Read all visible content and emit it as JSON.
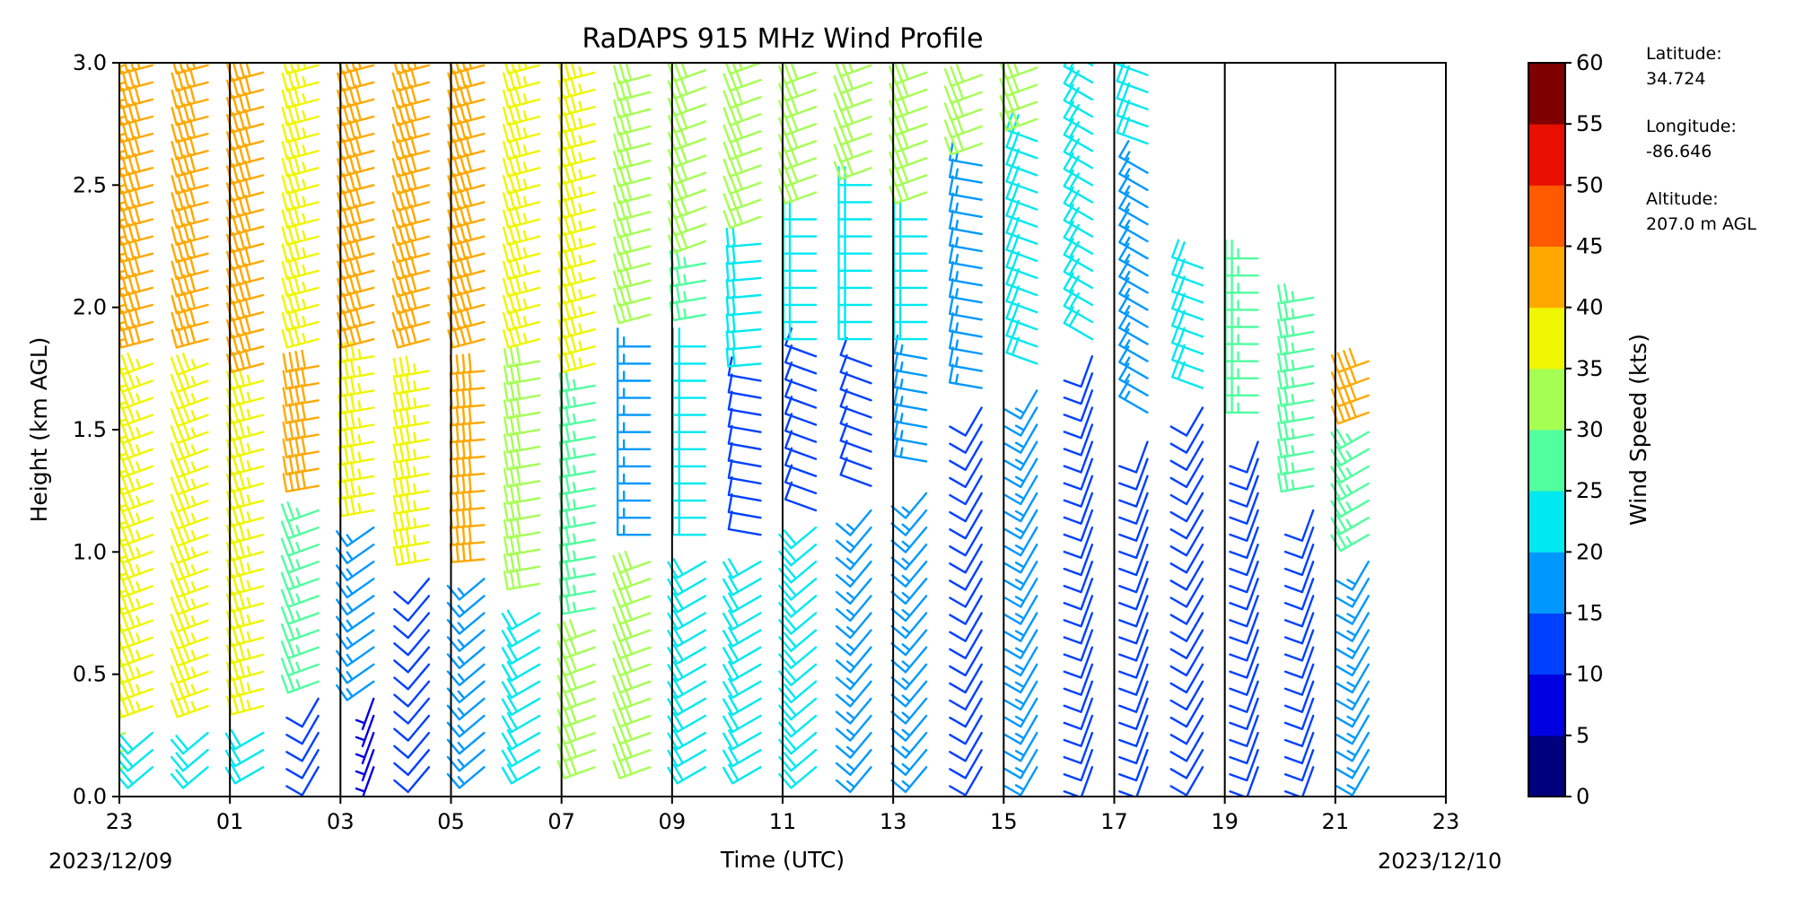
{
  "chart_data": {
    "type": "wind-barb-profile",
    "title": "RaDAPS 915 MHz Wind Profile",
    "xlabel": "Time (UTC)",
    "ylabel": "Height (km AGL)",
    "x_ticks": [
      "23",
      "01",
      "03",
      "05",
      "07",
      "09",
      "11",
      "13",
      "15",
      "17",
      "19",
      "21",
      "23"
    ],
    "x_range_hours": [
      0,
      24
    ],
    "date_start": "2023/12/09",
    "date_end": "2023/12/10",
    "y_ticks": [
      "0.0",
      "0.5",
      "1.0",
      "1.5",
      "2.0",
      "2.5",
      "3.0"
    ],
    "ylim": [
      0,
      3.0
    ],
    "colorbar": {
      "label": "Wind Speed (kts)",
      "ticks": [
        "0",
        "5",
        "10",
        "15",
        "20",
        "25",
        "30",
        "35",
        "40",
        "45",
        "50",
        "55",
        "60"
      ],
      "colors": [
        "#00007f",
        "#0000e0",
        "#0040ff",
        "#0098ff",
        "#00e8f0",
        "#50ff9e",
        "#a4ff52",
        "#f0f500",
        "#ffa800",
        "#ff5a00",
        "#e80f00",
        "#7f0000"
      ]
    },
    "site_info": {
      "latitude_label": "Latitude:",
      "latitude": "34.724",
      "longitude_label": "Longitude:",
      "longitude": "-86.646",
      "altitude_label": "Altitude:",
      "altitude": "207.0 m AGL"
    },
    "profiles": [
      {
        "t": 0.1,
        "layers": [
          {
            "top": 0.7,
            "speed": 32,
            "dir": 250
          },
          {
            "top": 1.8,
            "speed": 36,
            "dir": 250
          },
          {
            "top": 3.0,
            "speed": 44,
            "dir": 255
          }
        ]
      },
      {
        "t": 0.6,
        "layers": [
          {
            "top": 0.3,
            "speed": 22,
            "dir": 230
          },
          {
            "top": 1.8,
            "speed": 37,
            "dir": 250
          },
          {
            "top": 3.0,
            "speed": 44,
            "dir": 255
          }
        ]
      },
      {
        "t": 1.6,
        "layers": [
          {
            "top": 0.3,
            "speed": 20,
            "dir": 230
          },
          {
            "top": 1.8,
            "speed": 38,
            "dir": 250
          },
          {
            "top": 3.0,
            "speed": 44,
            "dir": 255
          }
        ]
      },
      {
        "t": 2.6,
        "layers": [
          {
            "top": 0.3,
            "speed": 24,
            "dir": 240
          },
          {
            "top": 1.7,
            "speed": 38,
            "dir": 255
          },
          {
            "top": 3.0,
            "speed": 42,
            "dir": 255
          }
        ]
      },
      {
        "t": 3.6,
        "layers": [
          {
            "top": 0.4,
            "speed": 10,
            "dir": 210
          },
          {
            "top": 1.2,
            "speed": 28,
            "dir": 250
          },
          {
            "top": 1.8,
            "speed": 40,
            "dir": 260
          },
          {
            "top": 3.0,
            "speed": 38,
            "dir": 255
          }
        ]
      },
      {
        "t": 4.6,
        "layers": [
          {
            "top": 0.4,
            "speed": 8,
            "dir": 200
          },
          {
            "top": 1.1,
            "speed": 18,
            "dir": 235
          },
          {
            "top": 1.8,
            "speed": 38,
            "dir": 260
          },
          {
            "top": 3.0,
            "speed": 40,
            "dir": 255
          }
        ]
      },
      {
        "t": 5.6,
        "layers": [
          {
            "top": 0.9,
            "speed": 12,
            "dir": 220
          },
          {
            "top": 1.8,
            "speed": 38,
            "dir": 260
          },
          {
            "top": 3.0,
            "speed": 40,
            "dir": 255
          }
        ]
      },
      {
        "t": 6.6,
        "layers": [
          {
            "top": 0.9,
            "speed": 18,
            "dir": 230
          },
          {
            "top": 1.8,
            "speed": 40,
            "dir": 265
          },
          {
            "top": 3.0,
            "speed": 40,
            "dir": 255
          }
        ]
      },
      {
        "t": 7.6,
        "layers": [
          {
            "top": 0.8,
            "speed": 22,
            "dir": 240
          },
          {
            "top": 1.8,
            "speed": 32,
            "dir": 260
          },
          {
            "top": 3.0,
            "speed": 38,
            "dir": 255
          }
        ]
      },
      {
        "t": 8.6,
        "layers": [
          {
            "top": 0.7,
            "speed": 30,
            "dir": 250
          },
          {
            "top": 1.7,
            "speed": 26,
            "dir": 260
          },
          {
            "top": 3.0,
            "speed": 36,
            "dir": 255
          }
        ]
      },
      {
        "t": 9.6,
        "layers": [
          {
            "top": 1.0,
            "speed": 30,
            "dir": 250
          },
          {
            "top": 1.9,
            "speed": 18,
            "dir": 270
          },
          {
            "top": 3.0,
            "speed": 34,
            "dir": 255
          }
        ]
      },
      {
        "t": 10.6,
        "layers": [
          {
            "top": 1.0,
            "speed": 22,
            "dir": 240
          },
          {
            "top": 1.9,
            "speed": 24,
            "dir": 270
          },
          {
            "top": 2.2,
            "speed": 26,
            "dir": 260
          },
          {
            "top": 3.0,
            "speed": 32,
            "dir": 250
          }
        ]
      },
      {
        "t": 11.6,
        "layers": [
          {
            "top": 1.0,
            "speed": 24,
            "dir": 240
          },
          {
            "top": 1.7,
            "speed": 14,
            "dir": 280
          },
          {
            "top": 2.3,
            "speed": 22,
            "dir": 265
          },
          {
            "top": 3.0,
            "speed": 32,
            "dir": 250
          }
        ]
      },
      {
        "t": 12.6,
        "layers": [
          {
            "top": 1.1,
            "speed": 20,
            "dir": 230
          },
          {
            "top": 1.8,
            "speed": 12,
            "dir": 290
          },
          {
            "top": 2.4,
            "speed": 22,
            "dir": 270
          },
          {
            "top": 3.0,
            "speed": 32,
            "dir": 250
          }
        ]
      },
      {
        "t": 13.6,
        "layers": [
          {
            "top": 1.2,
            "speed": 16,
            "dir": 220
          },
          {
            "top": 1.8,
            "speed": 14,
            "dir": 290
          },
          {
            "top": 2.5,
            "speed": 22,
            "dir": 270
          },
          {
            "top": 3.0,
            "speed": 34,
            "dir": 250
          }
        ]
      },
      {
        "t": 14.6,
        "layers": [
          {
            "top": 1.3,
            "speed": 16,
            "dir": 220
          },
          {
            "top": 1.8,
            "speed": 18,
            "dir": 280
          },
          {
            "top": 2.4,
            "speed": 24,
            "dir": 270
          },
          {
            "top": 3.0,
            "speed": 34,
            "dir": 250
          }
        ]
      },
      {
        "t": 15.6,
        "layers": [
          {
            "top": 1.6,
            "speed": 14,
            "dir": 210
          },
          {
            "top": 2.6,
            "speed": 18,
            "dir": 280
          },
          {
            "top": 3.0,
            "speed": 32,
            "dir": 250
          }
        ]
      },
      {
        "t": 16.6,
        "layers": [
          {
            "top": 1.7,
            "speed": 16,
            "dir": 210
          },
          {
            "top": 2.7,
            "speed": 20,
            "dir": 290
          },
          {
            "top": 3.0,
            "speed": 30,
            "dir": 250
          }
        ]
      },
      {
        "t": 17.6,
        "layers": [
          {
            "top": 1.8,
            "speed": 12,
            "dir": 200
          },
          {
            "top": 3.0,
            "speed": 20,
            "dir": 300
          }
        ]
      },
      {
        "t": 18.6,
        "layers": [
          {
            "top": 1.5,
            "speed": 12,
            "dir": 200
          },
          {
            "top": 2.6,
            "speed": 18,
            "dir": 300
          },
          {
            "top": 3.0,
            "speed": 24,
            "dir": 290
          }
        ]
      },
      {
        "t": 19.6,
        "layers": [
          {
            "top": 1.6,
            "speed": 14,
            "dir": 210
          },
          {
            "top": 2.2,
            "speed": 24,
            "dir": 290
          }
        ]
      },
      {
        "t": 20.6,
        "layers": [
          {
            "top": 1.5,
            "speed": 12,
            "dir": 200
          },
          {
            "top": 2.2,
            "speed": 28,
            "dir": 270
          }
        ]
      },
      {
        "t": 21.6,
        "layers": [
          {
            "top": 1.2,
            "speed": 12,
            "dir": 200
          },
          {
            "top": 2.1,
            "speed": 28,
            "dir": 260
          }
        ]
      },
      {
        "t": 22.6,
        "layers": [
          {
            "top": 1.0,
            "speed": 16,
            "dir": 210
          },
          {
            "top": 1.5,
            "speed": 26,
            "dir": 240
          },
          {
            "top": 1.8,
            "speed": 40,
            "dir": 250
          }
        ]
      }
    ]
  }
}
